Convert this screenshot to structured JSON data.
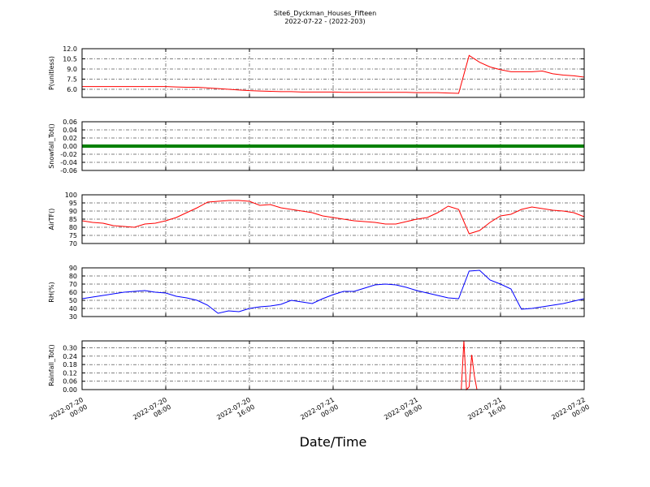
{
  "chart_data": {
    "title": "Site6_Dyckman_Houses_Fifteen",
    "subtitle": "2022-07-22 - (2022-203)",
    "xlabel": "Date/Time",
    "xlim": [
      "2022-07-20 00:00",
      "2022-07-22 00:00"
    ],
    "xticks": [
      "2022-07-20 00:00",
      "2022-07-20 08:00",
      "2022-07-20 16:00",
      "2022-07-21 00:00",
      "2022-07-21 08:00",
      "2022-07-21 16:00",
      "2022-07-22 00:00"
    ],
    "grid": true,
    "x": [
      "2022-07-20 00:00",
      "2022-07-20 01:00",
      "2022-07-20 02:00",
      "2022-07-20 03:00",
      "2022-07-20 04:00",
      "2022-07-20 05:00",
      "2022-07-20 06:00",
      "2022-07-20 07:00",
      "2022-07-20 08:00",
      "2022-07-20 09:00",
      "2022-07-20 10:00",
      "2022-07-20 11:00",
      "2022-07-20 12:00",
      "2022-07-20 13:00",
      "2022-07-20 14:00",
      "2022-07-20 15:00",
      "2022-07-20 16:00",
      "2022-07-20 17:00",
      "2022-07-20 18:00",
      "2022-07-20 19:00",
      "2022-07-20 20:00",
      "2022-07-20 21:00",
      "2022-07-20 22:00",
      "2022-07-20 23:00",
      "2022-07-21 00:00",
      "2022-07-21 01:00",
      "2022-07-21 02:00",
      "2022-07-21 03:00",
      "2022-07-21 04:00",
      "2022-07-21 05:00",
      "2022-07-21 06:00",
      "2022-07-21 07:00",
      "2022-07-21 08:00",
      "2022-07-21 09:00",
      "2022-07-21 10:00",
      "2022-07-21 11:00",
      "2022-07-21 12:00",
      "2022-07-21 13:00",
      "2022-07-21 14:00",
      "2022-07-21 15:00",
      "2022-07-21 16:00",
      "2022-07-21 17:00",
      "2022-07-21 18:00",
      "2022-07-21 19:00",
      "2022-07-21 20:00",
      "2022-07-21 21:00",
      "2022-07-21 22:00",
      "2022-07-21 23:00",
      "2022-07-22 00:00"
    ],
    "panels": [
      {
        "type": "line",
        "ylabel": "P(unitless)",
        "color": "#ff0000",
        "ylim": [
          4.8,
          12
        ],
        "yticks": [
          {
            "value": 6,
            "label": "6.0"
          },
          {
            "value": 7.5,
            "label": "7.5"
          },
          {
            "value": 9,
            "label": "9.0"
          },
          {
            "value": 10.5,
            "label": "10.5"
          },
          {
            "value": 12,
            "label": "12.0"
          }
        ],
        "values": [
          6.4,
          6.4,
          6.4,
          6.4,
          6.4,
          6.4,
          6.4,
          6.4,
          6.4,
          6.35,
          6.3,
          6.3,
          6.2,
          6.1,
          6.0,
          5.9,
          5.8,
          5.75,
          5.7,
          5.65,
          5.65,
          5.6,
          5.6,
          5.6,
          5.6,
          5.55,
          5.55,
          5.55,
          5.55,
          5.55,
          5.55,
          5.55,
          5.5,
          5.5,
          5.5,
          5.45,
          5.4,
          11.0,
          10.0,
          9.3,
          8.9,
          8.6,
          8.6,
          8.6,
          8.7,
          8.3,
          8.1,
          8.0,
          7.8
        ]
      },
      {
        "type": "line",
        "ylabel": "Snowfall_Tot()",
        "color": "#008000",
        "ylim": [
          -0.06,
          0.06
        ],
        "yticks": [
          {
            "value": -0.06,
            "label": "-0.06"
          },
          {
            "value": -0.04,
            "label": "-0.04"
          },
          {
            "value": -0.02,
            "label": "-0.02"
          },
          {
            "value": 0,
            "label": "0.00"
          },
          {
            "value": 0.02,
            "label": "0.02"
          },
          {
            "value": 0.04,
            "label": "0.04"
          },
          {
            "value": 0.06,
            "label": "0.06"
          }
        ],
        "values": [
          0,
          0,
          0,
          0,
          0,
          0,
          0,
          0,
          0,
          0,
          0,
          0,
          0,
          0,
          0,
          0,
          0,
          0,
          0,
          0,
          0,
          0,
          0,
          0,
          0,
          0,
          0,
          0,
          0,
          0,
          0,
          0,
          0,
          0,
          0,
          0,
          0,
          0,
          0,
          0,
          0,
          0,
          0,
          0,
          0,
          0,
          0,
          0,
          0
        ]
      },
      {
        "type": "line",
        "ylabel": "AirTF()",
        "color": "#ff0000",
        "ylim": [
          70,
          100
        ],
        "yticks": [
          70,
          75,
          80,
          85,
          90,
          95,
          100
        ],
        "values": [
          84,
          83,
          82.5,
          81,
          80.5,
          80,
          82,
          82.5,
          84,
          86,
          89,
          92,
          95.5,
          96,
          96.5,
          96.5,
          96,
          93.5,
          94,
          92,
          91,
          90,
          89,
          87,
          86,
          85,
          84,
          83.5,
          83,
          82,
          82,
          83.5,
          85,
          86,
          89,
          93,
          91,
          76,
          78,
          83,
          87,
          88,
          91,
          92.5,
          91.5,
          90.5,
          90,
          89,
          86.5
        ]
      },
      {
        "type": "line",
        "ylabel": "RH(%)",
        "color": "#0000ff",
        "ylim": [
          30,
          90
        ],
        "yticks": [
          30,
          40,
          50,
          60,
          70,
          80,
          90
        ],
        "values": [
          52,
          54,
          56,
          58,
          60,
          61,
          62,
          60,
          59,
          55,
          53,
          50,
          44,
          34,
          37,
          36,
          40,
          42,
          43,
          45,
          50,
          48,
          46,
          52,
          57,
          61,
          61,
          65,
          69,
          70,
          69,
          66,
          62,
          59,
          56,
          53,
          52,
          86,
          87,
          75,
          70,
          64,
          39,
          40,
          42,
          44,
          46,
          49,
          52
        ]
      },
      {
        "type": "line",
        "ylabel": "Rainfall_Tot()",
        "color": "#ff0000",
        "ylim": [
          0,
          0.35
        ],
        "yticks": [
          {
            "value": 0,
            "label": "0.00"
          },
          {
            "value": 0.06,
            "label": "0.06"
          },
          {
            "value": 0.12,
            "label": "0.12"
          },
          {
            "value": 0.18,
            "label": "0.18"
          },
          {
            "value": 0.24,
            "label": "0.24"
          },
          {
            "value": 0.3,
            "label": "0.30"
          }
        ],
        "x": [
          "2022-07-20 00:00",
          "2022-07-21 12:15",
          "2022-07-21 12:30",
          "2022-07-21 12:45",
          "2022-07-21 13:00",
          "2022-07-21 13:15",
          "2022-07-21 13:30",
          "2022-07-21 13:45"
        ],
        "values": [
          0,
          0,
          0.35,
          0,
          0.02,
          0.25,
          0.1,
          0
        ]
      }
    ]
  }
}
